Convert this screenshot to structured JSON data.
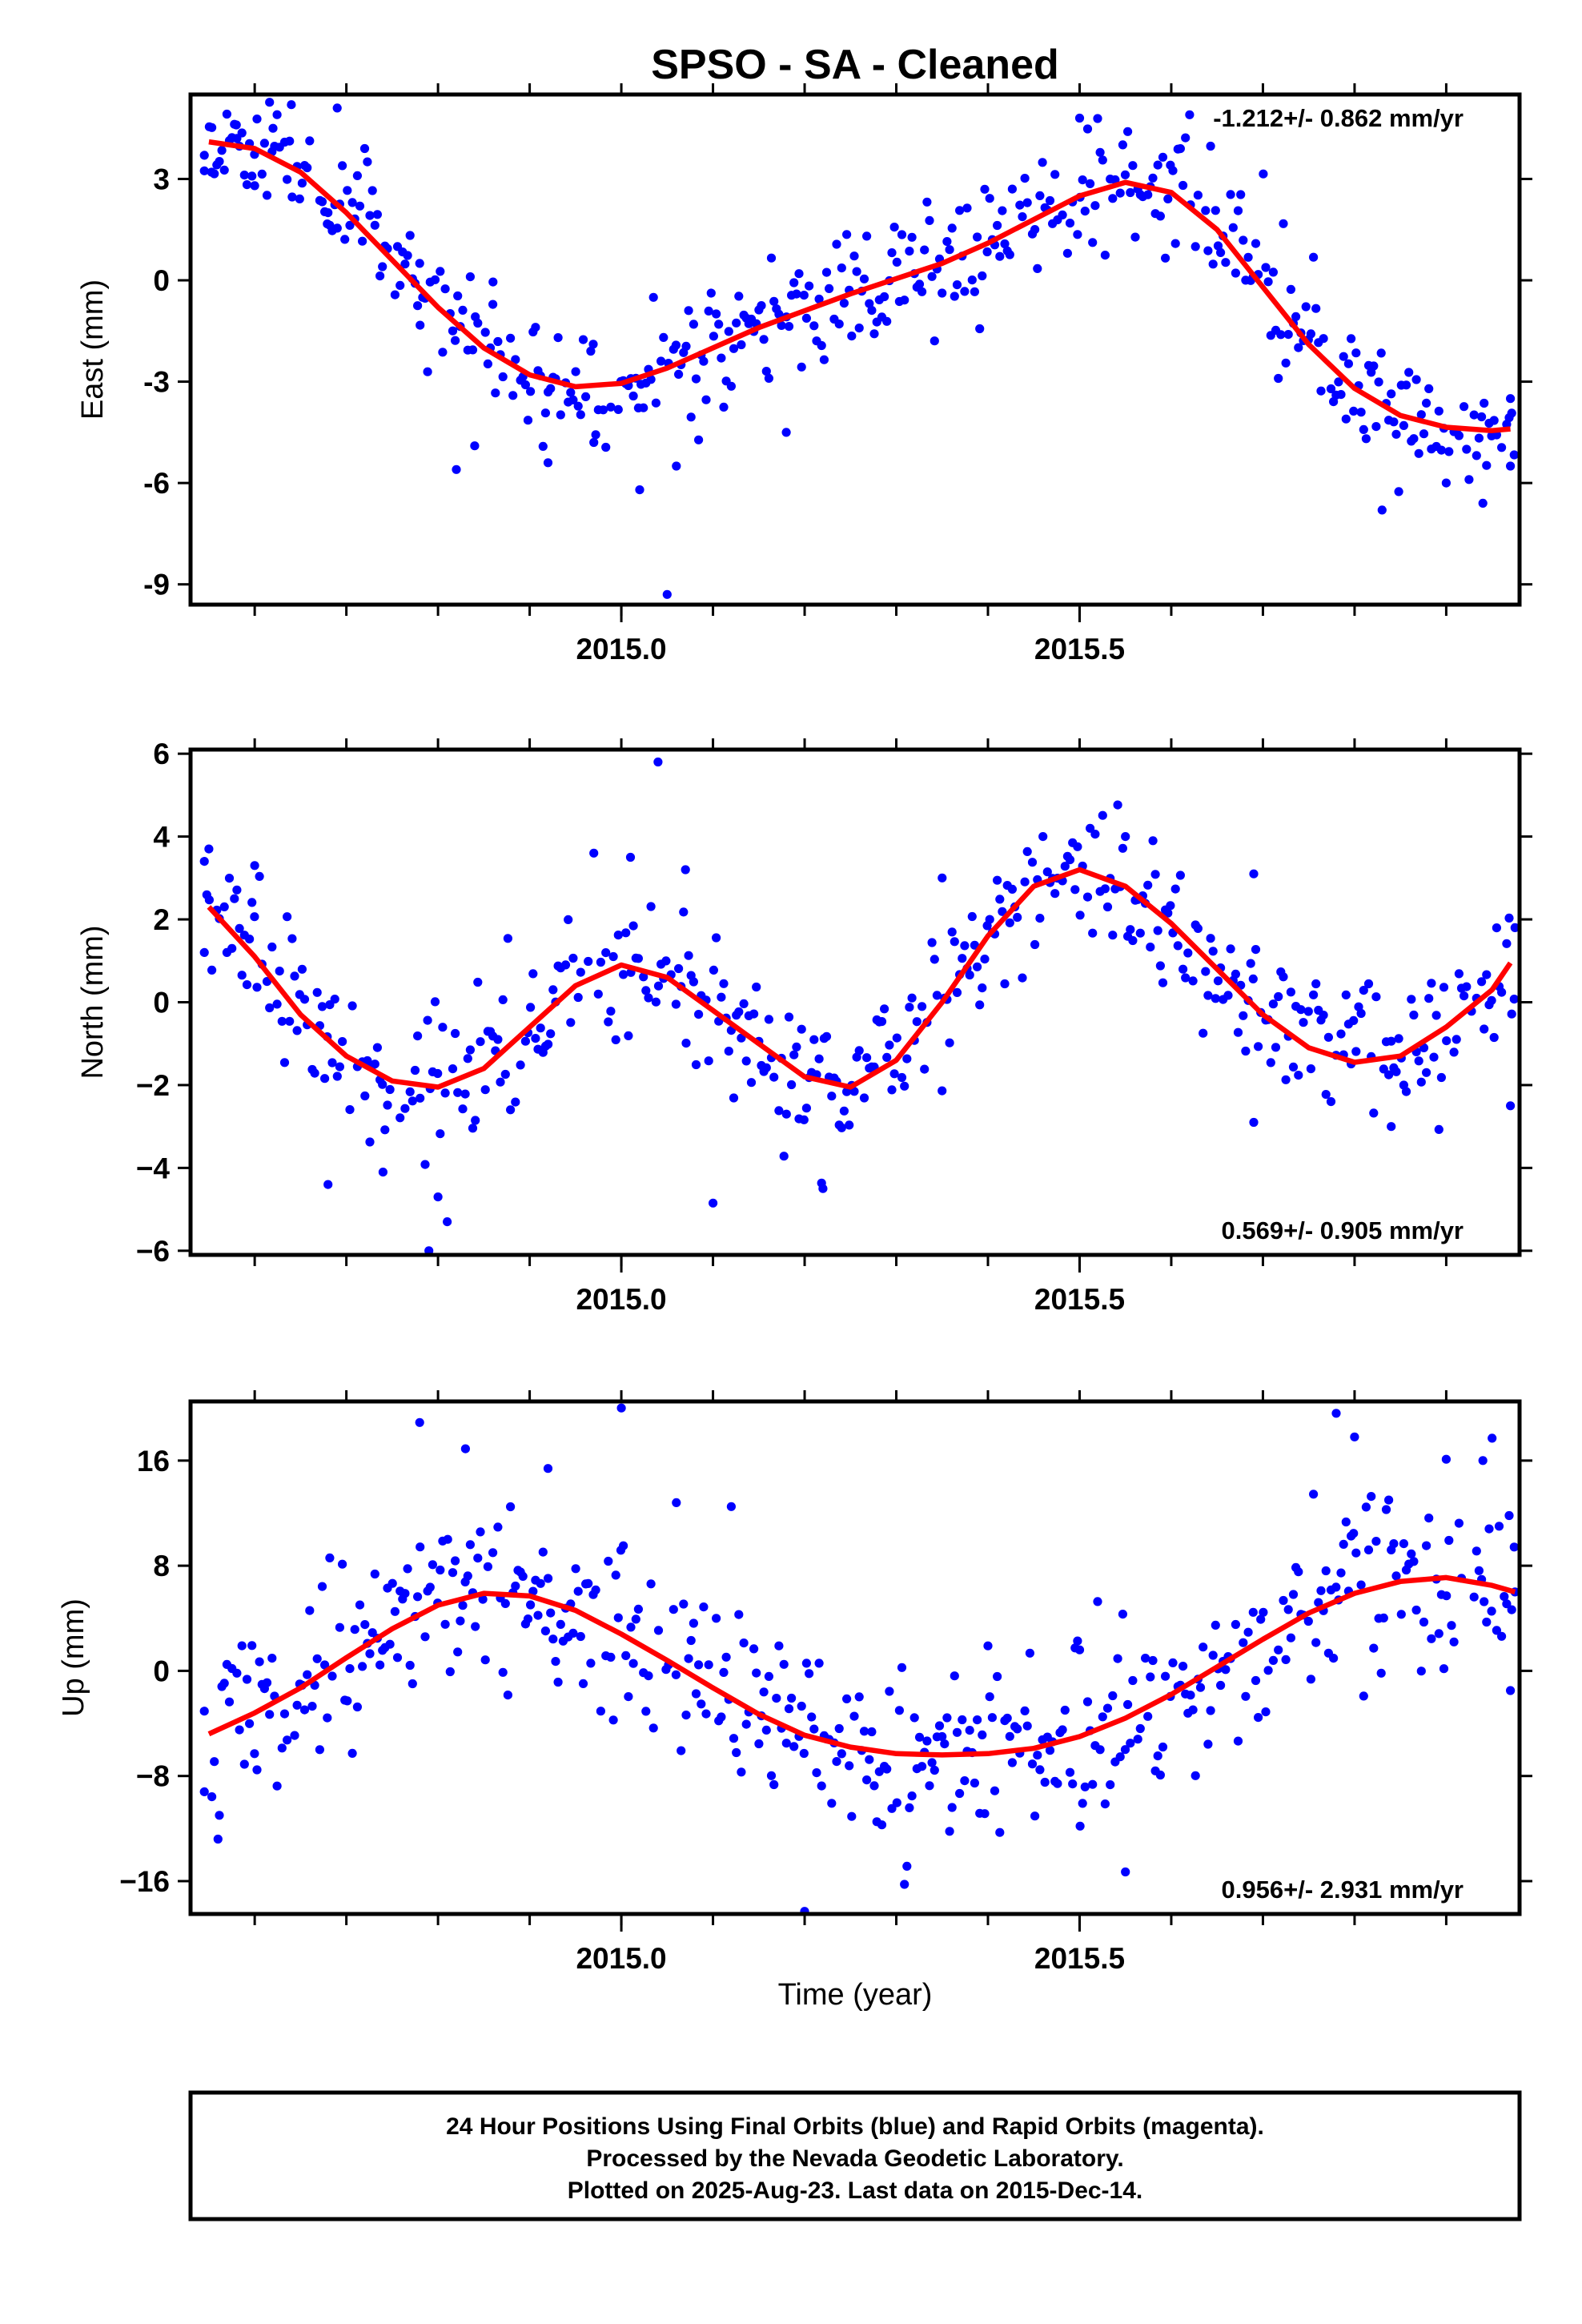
{
  "title": "SPSO  - SA - Cleaned",
  "xaxis": {
    "label": "Time (year)",
    "range": [
      2014.53,
      2015.98
    ],
    "ticks": [
      2015.0,
      2015.5
    ],
    "tick_labels": [
      "2015.0",
      "2015.5"
    ],
    "minor_ticks": [
      2014.6,
      2014.7,
      2014.8,
      2014.9,
      2015.0,
      2015.1,
      2015.2,
      2015.3,
      2015.4,
      2015.5,
      2015.6,
      2015.7,
      2015.8,
      2015.9
    ]
  },
  "colors": {
    "final_orbits": "#0000ff",
    "fit_curve": "#ff0000",
    "frame": "#000000"
  },
  "footer": {
    "line1": "24 Hour Positions Using Final Orbits (blue) and Rapid Orbits (magenta).",
    "line2": "Processed by the Nevada Geodetic Laboratory.",
    "line3": "Plotted on 2025-Aug-23. Last data on 2015-Dec-14."
  },
  "chart_data": [
    {
      "type": "scatter",
      "ylabel": "East (mm)",
      "ylim": [
        -9.6,
        5.5
      ],
      "yticks": [
        -9,
        -6,
        -3,
        0,
        3
      ],
      "ytick_labels": [
        "-9",
        "-6",
        "-3",
        "0",
        "3"
      ],
      "rate_text": "-1.212+/- 0.862 mm/yr",
      "rate_position": "top-right",
      "scatter_seed": 11,
      "scatter_noise": 0.9,
      "series": [
        {
          "name": "Final Orbits",
          "points": [
            [
              2014.545,
              3.7
            ],
            [
              2014.553,
              3.2
            ],
            [
              2014.58,
              4.6
            ],
            [
              2014.6,
              2.8
            ],
            [
              2014.62,
              4.5
            ],
            [
              2014.64,
              5.2
            ],
            [
              2014.68,
              2.0
            ],
            [
              2014.69,
              5.1
            ],
            [
              2014.72,
              3.9
            ],
            [
              2014.78,
              0.5
            ],
            [
              2014.82,
              -5.6
            ],
            [
              2014.84,
              -4.9
            ],
            [
              2014.86,
              -0.05
            ],
            [
              2014.92,
              -5.4
            ],
            [
              2014.97,
              -4.8
            ],
            [
              2015.02,
              -6.2
            ],
            [
              2015.05,
              -9.3
            ],
            [
              2015.06,
              -5.5
            ],
            [
              2015.18,
              -4.5
            ],
            [
              2015.5,
              4.8
            ],
            [
              2015.62,
              4.9
            ],
            [
              2015.83,
              -6.8
            ],
            [
              2015.9,
              -6.0
            ],
            [
              2015.94,
              -6.6
            ],
            [
              2015.97,
              -5.5
            ],
            [
              2015.97,
              -3.5
            ]
          ]
        },
        {
          "name": "Fit",
          "curve": [
            [
              2014.55,
              4.1
            ],
            [
              2014.6,
              3.9
            ],
            [
              2014.65,
              3.2
            ],
            [
              2014.7,
              2.0
            ],
            [
              2014.75,
              0.6
            ],
            [
              2014.8,
              -0.8
            ],
            [
              2014.85,
              -2.0
            ],
            [
              2014.9,
              -2.8
            ],
            [
              2014.95,
              -3.15
            ],
            [
              2015.0,
              -3.05
            ],
            [
              2015.05,
              -2.6
            ],
            [
              2015.1,
              -2.0
            ],
            [
              2015.15,
              -1.4
            ],
            [
              2015.2,
              -0.9
            ],
            [
              2015.25,
              -0.4
            ],
            [
              2015.3,
              0.05
            ],
            [
              2015.35,
              0.5
            ],
            [
              2015.4,
              1.1
            ],
            [
              2015.45,
              1.8
            ],
            [
              2015.5,
              2.5
            ],
            [
              2015.55,
              2.9
            ],
            [
              2015.6,
              2.6
            ],
            [
              2015.65,
              1.5
            ],
            [
              2015.7,
              -0.2
            ],
            [
              2015.75,
              -1.9
            ],
            [
              2015.8,
              -3.2
            ],
            [
              2015.85,
              -4.0
            ],
            [
              2015.9,
              -4.35
            ],
            [
              2015.95,
              -4.45
            ],
            [
              2015.97,
              -4.4
            ]
          ]
        }
      ]
    },
    {
      "type": "scatter",
      "ylabel": "North (mm)",
      "ylim": [
        -6.1,
        6.1
      ],
      "yticks": [
        -6,
        -4,
        -2,
        0,
        2,
        4,
        6
      ],
      "ytick_labels": [
        "−6",
        "−4",
        "−2",
        "0",
        "2",
        "4",
        "6"
      ],
      "rate_text": "0.569+/- 0.905 mm/yr",
      "rate_position": "bottom-right",
      "scatter_seed": 23,
      "scatter_noise": 0.85,
      "series": [
        {
          "name": "Final Orbits",
          "points": [
            [
              2014.545,
              3.4
            ],
            [
              2014.55,
              3.7
            ],
            [
              2014.6,
              3.3
            ],
            [
              2014.68,
              -4.4
            ],
            [
              2014.74,
              -4.1
            ],
            [
              2014.79,
              -6.0
            ],
            [
              2014.8,
              -4.7
            ],
            [
              2014.81,
              -5.3
            ],
            [
              2014.97,
              3.6
            ],
            [
              2015.01,
              3.5
            ],
            [
              2015.04,
              5.8
            ],
            [
              2015.07,
              3.2
            ],
            [
              2015.1,
              -4.85
            ],
            [
              2015.22,
              -4.5
            ],
            [
              2015.35,
              3.0
            ],
            [
              2015.46,
              4.0
            ],
            [
              2015.55,
              4.0
            ],
            [
              2015.58,
              3.9
            ],
            [
              2015.69,
              3.1
            ],
            [
              2015.69,
              -2.9
            ],
            [
              2015.84,
              -3.0
            ],
            [
              2015.97,
              -2.5
            ],
            [
              2015.975,
              1.8
            ]
          ]
        },
        {
          "name": "Fit",
          "curve": [
            [
              2014.55,
              2.3
            ],
            [
              2014.6,
              1.1
            ],
            [
              2014.65,
              -0.3
            ],
            [
              2014.7,
              -1.3
            ],
            [
              2014.75,
              -1.9
            ],
            [
              2014.8,
              -2.05
            ],
            [
              2014.85,
              -1.6
            ],
            [
              2014.9,
              -0.6
            ],
            [
              2014.95,
              0.4
            ],
            [
              2015.0,
              0.9
            ],
            [
              2015.05,
              0.6
            ],
            [
              2015.1,
              -0.2
            ],
            [
              2015.15,
              -1.0
            ],
            [
              2015.2,
              -1.8
            ],
            [
              2015.25,
              -2.05
            ],
            [
              2015.3,
              -1.4
            ],
            [
              2015.35,
              0.0
            ],
            [
              2015.4,
              1.6
            ],
            [
              2015.45,
              2.8
            ],
            [
              2015.5,
              3.2
            ],
            [
              2015.55,
              2.8
            ],
            [
              2015.6,
              1.9
            ],
            [
              2015.65,
              0.8
            ],
            [
              2015.7,
              -0.3
            ],
            [
              2015.75,
              -1.1
            ],
            [
              2015.8,
              -1.45
            ],
            [
              2015.85,
              -1.3
            ],
            [
              2015.9,
              -0.6
            ],
            [
              2015.95,
              0.3
            ],
            [
              2015.97,
              0.95
            ]
          ]
        }
      ]
    },
    {
      "type": "scatter",
      "ylabel": "Up (mm)",
      "ylim": [
        -18.5,
        20.5
      ],
      "yticks": [
        -16,
        -8,
        0,
        8,
        16
      ],
      "ytick_labels": [
        "−16",
        "−8",
        "0",
        "8",
        "16"
      ],
      "rate_text": "0.956+/- 2.931 mm/yr",
      "rate_position": "bottom-right",
      "scatter_seed": 37,
      "scatter_noise": 3.2,
      "series": [
        {
          "name": "Final Orbits",
          "points": [
            [
              2014.545,
              -9.2
            ],
            [
              2014.56,
              -12.8
            ],
            [
              2014.78,
              18.9
            ],
            [
              2014.83,
              16.9
            ],
            [
              2014.92,
              15.4
            ],
            [
              2015.0,
              20.0
            ],
            [
              2015.06,
              12.8
            ],
            [
              2015.12,
              12.5
            ],
            [
              2015.2,
              -18.3
            ],
            [
              2015.4,
              1.9
            ],
            [
              2015.5,
              1.6
            ],
            [
              2015.55,
              -15.3
            ],
            [
              2015.78,
              19.6
            ],
            [
              2015.8,
              17.8
            ],
            [
              2015.9,
              16.1
            ],
            [
              2015.94,
              16.0
            ],
            [
              2015.95,
              17.7
            ],
            [
              2015.97,
              -1.5
            ],
            [
              2015.975,
              6.0
            ]
          ]
        },
        {
          "name": "Fit",
          "curve": [
            [
              2014.55,
              -4.8
            ],
            [
              2014.6,
              -3.2
            ],
            [
              2014.65,
              -1.3
            ],
            [
              2014.7,
              1.0
            ],
            [
              2014.75,
              3.2
            ],
            [
              2014.8,
              5.0
            ],
            [
              2014.85,
              5.9
            ],
            [
              2014.9,
              5.7
            ],
            [
              2014.95,
              4.6
            ],
            [
              2015.0,
              2.8
            ],
            [
              2015.05,
              0.8
            ],
            [
              2015.1,
              -1.3
            ],
            [
              2015.15,
              -3.3
            ],
            [
              2015.2,
              -4.9
            ],
            [
              2015.25,
              -5.8
            ],
            [
              2015.3,
              -6.3
            ],
            [
              2015.35,
              -6.4
            ],
            [
              2015.4,
              -6.3
            ],
            [
              2015.45,
              -5.9
            ],
            [
              2015.5,
              -5.0
            ],
            [
              2015.55,
              -3.6
            ],
            [
              2015.6,
              -1.8
            ],
            [
              2015.65,
              0.3
            ],
            [
              2015.7,
              2.4
            ],
            [
              2015.75,
              4.4
            ],
            [
              2015.8,
              5.9
            ],
            [
              2015.85,
              6.8
            ],
            [
              2015.9,
              7.1
            ],
            [
              2015.95,
              6.5
            ],
            [
              2015.975,
              6.0
            ]
          ]
        }
      ]
    }
  ]
}
